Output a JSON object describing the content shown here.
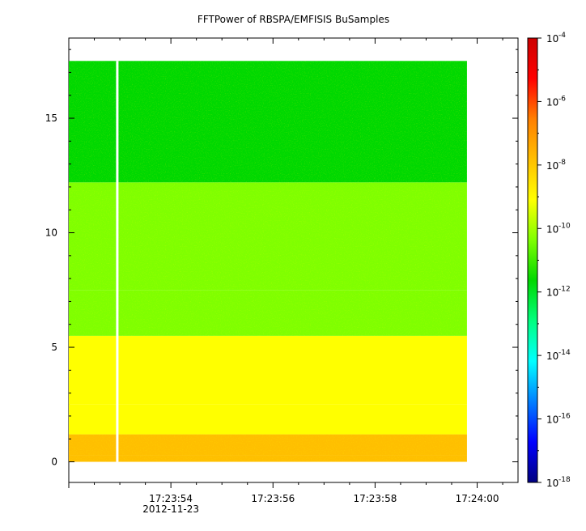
{
  "chart_data": {
    "type": "heatmap",
    "title": "FFTPower of RBSPA/EMFISIS  BuSamples",
    "xlabel": "",
    "ylabel": "",
    "x_date": "2012-11-23",
    "x_ticks": [
      "17:23:54",
      "17:23:56",
      "17:23:58",
      "17:24:00"
    ],
    "x_range": [
      "17:23:52.0",
      "17:24:00.8"
    ],
    "data_x_range": [
      "17:23:52.0",
      "17:23:59.8"
    ],
    "data_gap_x": "17:23:52.95",
    "y_range": [
      -0.9,
      18.5
    ],
    "data_y_range": [
      0,
      17.5
    ],
    "y_ticks": [
      0,
      5,
      10,
      15
    ],
    "y_band_edges": [
      0.3,
      1.2,
      2.5,
      5.5,
      7.5,
      12.2,
      17.5
    ],
    "y_band_log_power": [
      -8.0,
      -8.9,
      -9.5,
      -9.8,
      -10.6,
      -11.8
    ],
    "colorbar": {
      "scale": "log",
      "range": [
        1e-18,
        0.0001
      ],
      "tick_mantissas": [
        "10",
        "10",
        "10",
        "10",
        "10",
        "10",
        "10",
        "10"
      ],
      "tick_exponents": [
        "-18",
        "-16",
        "-14",
        "-12",
        "-10",
        "-8",
        "-6",
        "-4"
      ],
      "tick_values": [
        1e-18,
        1e-16,
        1e-14,
        1e-12,
        1e-10,
        1e-08,
        1e-06,
        0.0001
      ],
      "colormap": [
        "#00007f",
        "#0000ff",
        "#007fff",
        "#00ffff",
        "#00ff7f",
        "#00d800",
        "#7fff00",
        "#ffff00",
        "#ffbf00",
        "#ff7f00",
        "#ff0000",
        "#cc0000"
      ]
    }
  }
}
